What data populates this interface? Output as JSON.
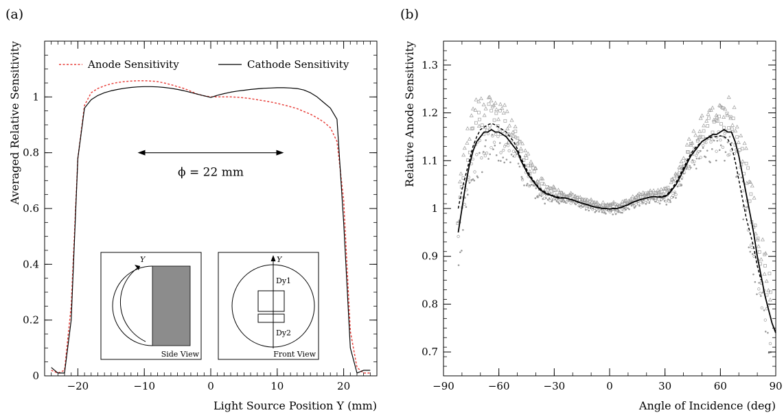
{
  "chart_data": [
    {
      "panel_label": "(a)",
      "type": "line",
      "xlabel": "Light Source Position Y (mm)",
      "ylabel": "Averaged Relative Sensitivity",
      "xlim": [
        -25,
        25
      ],
      "ylim": [
        0,
        1.2
      ],
      "xticks": [
        -20,
        -10,
        0,
        10,
        20
      ],
      "yticks": [
        0,
        0.2,
        0.4,
        0.6,
        0.8,
        1
      ],
      "legend_position": "top",
      "series": [
        {
          "name": "Anode Sensitivity",
          "color": "#e8413c",
          "style": "dashed",
          "x": [
            -24,
            -23,
            -22,
            -21,
            -20,
            -19,
            -18,
            -17,
            -16,
            -15,
            -14,
            -13,
            -12,
            -11,
            -10,
            -9,
            -8,
            -7,
            -6,
            -5,
            -4,
            -3,
            -2,
            -1,
            0,
            1,
            2,
            3,
            4,
            5,
            6,
            7,
            8,
            9,
            10,
            11,
            12,
            13,
            14,
            15,
            16,
            17,
            18,
            19,
            20,
            21,
            22,
            23,
            24
          ],
          "y": [
            0.02,
            0.01,
            0.02,
            0.25,
            0.78,
            0.97,
            1.015,
            1.03,
            1.04,
            1.047,
            1.052,
            1.055,
            1.057,
            1.058,
            1.058,
            1.057,
            1.055,
            1.05,
            1.044,
            1.037,
            1.03,
            1.02,
            1.01,
            1.004,
            1.0,
            1.0,
            1.0,
            1.0,
            0.999,
            0.997,
            0.994,
            0.99,
            0.986,
            0.982,
            0.977,
            0.971,
            0.965,
            0.958,
            0.948,
            0.938,
            0.925,
            0.91,
            0.89,
            0.84,
            0.63,
            0.16,
            0.03,
            0.01,
            0.01
          ]
        },
        {
          "name": "Cathode Sensitivity",
          "color": "#000000",
          "style": "solid",
          "x": [
            -24,
            -23,
            -22,
            -21,
            -20,
            -19,
            -18,
            -17,
            -16,
            -15,
            -14,
            -13,
            -12,
            -11,
            -10,
            -9,
            -8,
            -7,
            -6,
            -5,
            -4,
            -3,
            -2,
            -1,
            0,
            1,
            2,
            3,
            4,
            5,
            6,
            7,
            8,
            9,
            10,
            11,
            12,
            13,
            14,
            15,
            16,
            17,
            18,
            19,
            20,
            21,
            22,
            23,
            24
          ],
          "y": [
            0.03,
            0.01,
            0.01,
            0.2,
            0.78,
            0.96,
            0.99,
            1.005,
            1.015,
            1.022,
            1.027,
            1.031,
            1.034,
            1.036,
            1.037,
            1.037,
            1.036,
            1.034,
            1.031,
            1.027,
            1.022,
            1.016,
            1.01,
            1.004,
            0.998,
            1.006,
            1.012,
            1.017,
            1.021,
            1.024,
            1.027,
            1.029,
            1.031,
            1.032,
            1.033,
            1.033,
            1.032,
            1.03,
            1.025,
            1.015,
            1.0,
            0.98,
            0.96,
            0.92,
            0.55,
            0.1,
            0.01,
            0.02,
            0.02
          ]
        }
      ],
      "annotations": {
        "dimension_label": "ϕ = 22 mm",
        "dimension_span": [
          -11,
          11
        ],
        "dimension_y": 0.8,
        "side_view_axis": "Y",
        "side_view_label": "Side View",
        "front_view_axis": "Y",
        "front_view_label": "Front View",
        "dynode_top": "Dy1",
        "dynode_bottom": "Dy2"
      }
    },
    {
      "panel_label": "(b)",
      "type": "line",
      "xlabel": "Angle of Incidence (deg)",
      "ylabel": "Relative Anode Sensitivity",
      "xlim": [
        -90,
        90
      ],
      "ylim": [
        0.65,
        1.35
      ],
      "xticks": [
        -90,
        -60,
        -30,
        0,
        30,
        60,
        90
      ],
      "yticks": [
        0.7,
        0.8,
        0.9,
        1,
        1.1,
        1.2,
        1.3
      ],
      "series": [
        {
          "style": "solid",
          "color": "#000000",
          "x": [
            -82,
            -80,
            -78,
            -76,
            -74,
            -72,
            -70,
            -68,
            -66,
            -64,
            -62,
            -60,
            -58,
            -56,
            -54,
            -52,
            -50,
            -48,
            -46,
            -44,
            -42,
            -40,
            -38,
            -36,
            -34,
            -32,
            -30,
            -28,
            -26,
            -24,
            -22,
            -20,
            -18,
            -16,
            -14,
            -12,
            -10,
            -8,
            -6,
            -4,
            -2,
            0,
            2,
            4,
            6,
            8,
            10,
            12,
            14,
            16,
            18,
            20,
            22,
            24,
            26,
            28,
            30,
            32,
            34,
            36,
            38,
            40,
            42,
            44,
            46,
            48,
            50,
            52,
            54,
            56,
            58,
            60,
            62,
            64,
            66,
            68,
            70,
            72,
            74,
            76,
            78,
            80,
            82,
            84,
            86,
            88,
            90
          ],
          "y": [
            0.95,
            1.0,
            1.05,
            1.09,
            1.12,
            1.14,
            1.15,
            1.16,
            1.16,
            1.165,
            1.16,
            1.16,
            1.155,
            1.15,
            1.14,
            1.13,
            1.12,
            1.1,
            1.085,
            1.07,
            1.06,
            1.05,
            1.04,
            1.035,
            1.03,
            1.028,
            1.025,
            1.022,
            1.022,
            1.022,
            1.02,
            1.018,
            1.015,
            1.012,
            1.01,
            1.008,
            1.005,
            1.003,
            1.002,
            1.0,
            1.0,
            0.999,
            1.0,
            1.0,
            1.002,
            1.005,
            1.008,
            1.012,
            1.015,
            1.018,
            1.02,
            1.022,
            1.024,
            1.025,
            1.024,
            1.024,
            1.025,
            1.03,
            1.04,
            1.05,
            1.065,
            1.08,
            1.095,
            1.11,
            1.12,
            1.13,
            1.14,
            1.145,
            1.15,
            1.155,
            1.155,
            1.16,
            1.165,
            1.16,
            1.16,
            1.14,
            1.11,
            1.07,
            1.03,
            0.99,
            0.95,
            0.9,
            0.86,
            0.82,
            0.79,
            0.76,
            0.74
          ]
        },
        {
          "style": "dashed",
          "color": "#000000",
          "x": [
            -82,
            -80,
            -78,
            -76,
            -74,
            -72,
            -70,
            -68,
            -66,
            -64,
            -62,
            -60,
            -58,
            -56,
            -54,
            -52,
            -50,
            -48,
            -46,
            -44,
            -42,
            -40,
            -38,
            -36,
            -34,
            -32,
            -30,
            -28,
            -26,
            -24,
            -22,
            -20,
            -18,
            -16,
            -14,
            -12,
            -10,
            -8,
            -6,
            -4,
            -2,
            0,
            2,
            4,
            6,
            8,
            10,
            12,
            14,
            16,
            18,
            20,
            22,
            24,
            26,
            28,
            30,
            32,
            34,
            36,
            38,
            40,
            42,
            44,
            46,
            48,
            50,
            52,
            54,
            56,
            58,
            60,
            62,
            64,
            66,
            68,
            70,
            72,
            74,
            76,
            78,
            80,
            82
          ],
          "y": [
            1.0,
            1.04,
            1.07,
            1.1,
            1.13,
            1.15,
            1.165,
            1.17,
            1.175,
            1.178,
            1.175,
            1.17,
            1.165,
            1.16,
            1.15,
            1.14,
            1.125,
            1.105,
            1.09,
            1.075,
            1.063,
            1.052,
            1.043,
            1.037,
            1.032,
            1.029,
            1.026,
            1.024,
            1.023,
            1.022,
            1.02,
            1.018,
            1.015,
            1.012,
            1.01,
            1.008,
            1.005,
            1.003,
            1.002,
            1.0,
            1.0,
            0.999,
            1.0,
            1.0,
            1.002,
            1.005,
            1.008,
            1.012,
            1.015,
            1.018,
            1.02,
            1.022,
            1.024,
            1.025,
            1.025,
            1.025,
            1.027,
            1.033,
            1.043,
            1.055,
            1.07,
            1.085,
            1.1,
            1.115,
            1.125,
            1.133,
            1.14,
            1.145,
            1.148,
            1.15,
            1.15,
            1.152,
            1.15,
            1.145,
            1.13,
            1.1,
            1.06,
            1.02,
            0.98,
            0.95,
            0.92,
            0.88,
            0.85
          ]
        }
      ]
    }
  ]
}
